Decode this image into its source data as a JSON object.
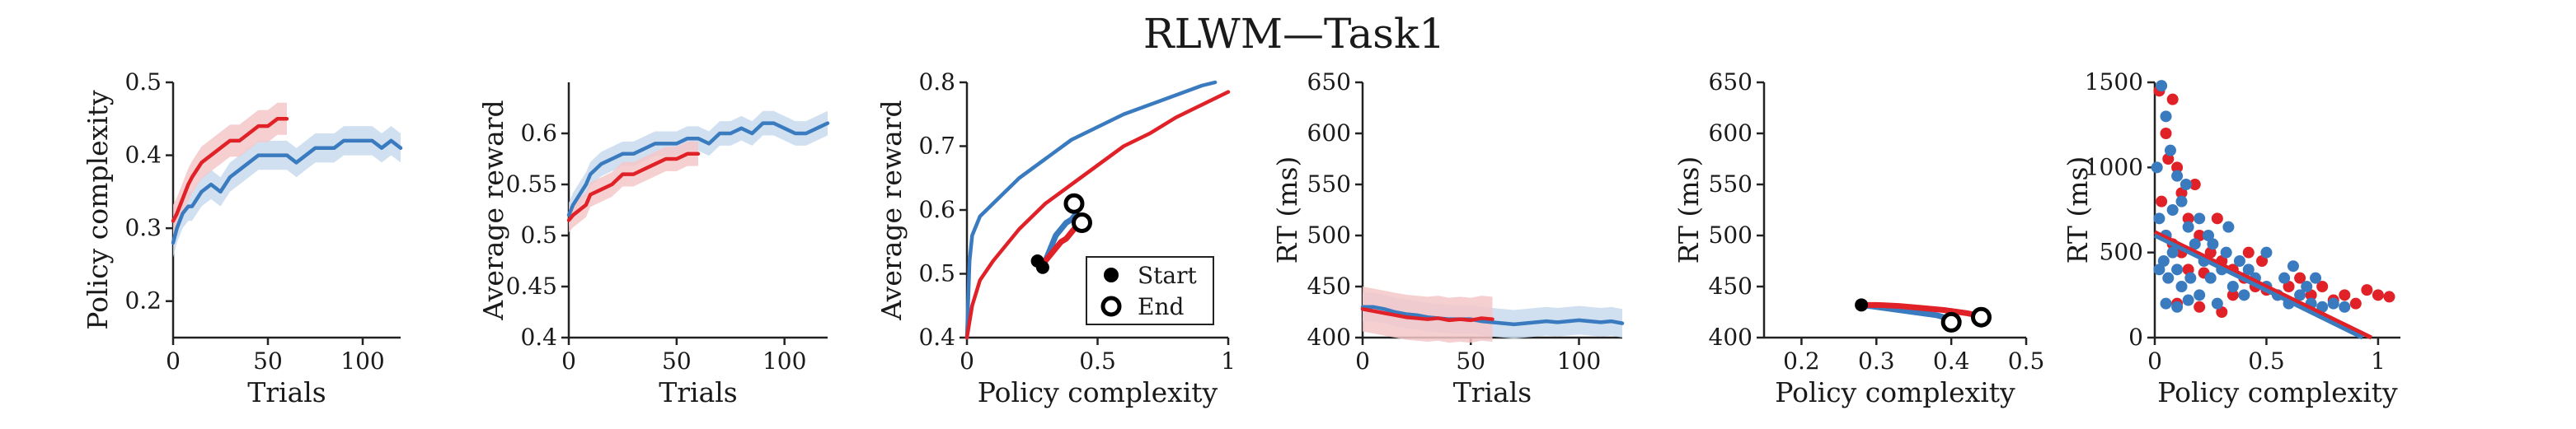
{
  "title": "RLWM—Task1",
  "colors": {
    "blue": "#3a7bbf",
    "red": "#e02228",
    "blue_band": "#c9dbee",
    "red_band": "#f5c7c9"
  },
  "chart_data": [
    {
      "type": "line",
      "xlabel": "Trials",
      "ylabel": "Policy complexity",
      "xlim": [
        0,
        120
      ],
      "ylim": [
        0.15,
        0.5
      ],
      "xticks": [
        0,
        50,
        100
      ],
      "yticks": [
        0.2,
        0.3,
        0.4,
        0.5
      ],
      "series": [
        {
          "color": "blue",
          "band": 0.02,
          "x": [
            0,
            2,
            5,
            8,
            10,
            15,
            20,
            25,
            30,
            35,
            40,
            45,
            50,
            55,
            60,
            65,
            70,
            75,
            80,
            85,
            90,
            95,
            100,
            105,
            110,
            115,
            120
          ],
          "y": [
            0.28,
            0.3,
            0.32,
            0.33,
            0.33,
            0.35,
            0.36,
            0.35,
            0.37,
            0.38,
            0.39,
            0.4,
            0.4,
            0.4,
            0.4,
            0.39,
            0.4,
            0.41,
            0.41,
            0.41,
            0.42,
            0.42,
            0.42,
            0.42,
            0.41,
            0.42,
            0.41
          ]
        },
        {
          "color": "red",
          "band": 0.022,
          "x": [
            0,
            2,
            5,
            8,
            10,
            15,
            20,
            25,
            30,
            35,
            40,
            45,
            50,
            55,
            60
          ],
          "y": [
            0.31,
            0.32,
            0.34,
            0.36,
            0.37,
            0.39,
            0.4,
            0.41,
            0.42,
            0.42,
            0.43,
            0.44,
            0.44,
            0.45,
            0.45
          ]
        }
      ]
    },
    {
      "type": "line",
      "xlabel": "Trials",
      "ylabel": "Average reward",
      "xlim": [
        0,
        120
      ],
      "ylim": [
        0.4,
        0.65
      ],
      "xticks": [
        0,
        50,
        100
      ],
      "yticks": [
        0.4,
        0.45,
        0.5,
        0.55,
        0.6
      ],
      "series": [
        {
          "color": "blue",
          "band": 0.012,
          "x": [
            0,
            2,
            5,
            8,
            10,
            15,
            20,
            25,
            30,
            35,
            40,
            45,
            50,
            55,
            60,
            65,
            70,
            75,
            80,
            85,
            90,
            95,
            100,
            105,
            110,
            115,
            120
          ],
          "y": [
            0.52,
            0.53,
            0.54,
            0.55,
            0.56,
            0.57,
            0.575,
            0.58,
            0.58,
            0.585,
            0.59,
            0.59,
            0.59,
            0.595,
            0.595,
            0.59,
            0.6,
            0.6,
            0.605,
            0.6,
            0.61,
            0.61,
            0.605,
            0.6,
            0.6,
            0.605,
            0.61
          ]
        },
        {
          "color": "red",
          "band": 0.012,
          "x": [
            0,
            2,
            5,
            8,
            10,
            15,
            20,
            25,
            30,
            35,
            40,
            45,
            50,
            55,
            60
          ],
          "y": [
            0.515,
            0.52,
            0.525,
            0.53,
            0.54,
            0.545,
            0.55,
            0.56,
            0.56,
            0.565,
            0.57,
            0.575,
            0.575,
            0.58,
            0.58
          ]
        }
      ]
    },
    {
      "type": "line",
      "xlabel": "Policy complexity",
      "ylabel": "Average reward",
      "xlim": [
        0,
        1.0
      ],
      "ylim": [
        0.4,
        0.8
      ],
      "xticks": [
        0,
        0.5,
        1
      ],
      "yticks": [
        0.4,
        0.5,
        0.6,
        0.7,
        0.8
      ],
      "series": [
        {
          "color": "blue",
          "x": [
            0,
            0.01,
            0.02,
            0.05,
            0.1,
            0.2,
            0.3,
            0.4,
            0.5,
            0.6,
            0.7,
            0.8,
            0.9,
            0.95
          ],
          "y": [
            0.4,
            0.52,
            0.56,
            0.59,
            0.61,
            0.65,
            0.68,
            0.71,
            0.73,
            0.75,
            0.765,
            0.78,
            0.795,
            0.8
          ]
        },
        {
          "color": "red",
          "x": [
            0,
            0.02,
            0.05,
            0.1,
            0.2,
            0.3,
            0.4,
            0.5,
            0.6,
            0.7,
            0.8,
            0.9,
            1.0
          ],
          "y": [
            0.4,
            0.45,
            0.49,
            0.52,
            0.57,
            0.61,
            0.64,
            0.67,
            0.7,
            0.72,
            0.745,
            0.765,
            0.785
          ]
        },
        {
          "color": "blue",
          "width": 7,
          "x": [
            0.3,
            0.32,
            0.34,
            0.36,
            0.38,
            0.4,
            0.42
          ],
          "y": [
            0.52,
            0.54,
            0.56,
            0.57,
            0.58,
            0.585,
            0.595
          ]
        },
        {
          "color": "red",
          "width": 7,
          "x": [
            0.3,
            0.32,
            0.34,
            0.36,
            0.38,
            0.4,
            0.43
          ],
          "y": [
            0.52,
            0.53,
            0.54,
            0.55,
            0.555,
            0.565,
            0.58
          ]
        }
      ],
      "markers": [
        {
          "kind": "start",
          "x": 0.27,
          "y": 0.52
        },
        {
          "kind": "start",
          "x": 0.29,
          "y": 0.51
        },
        {
          "kind": "end",
          "x": 0.41,
          "y": 0.61
        },
        {
          "kind": "end",
          "x": 0.44,
          "y": 0.58
        }
      ],
      "legend": {
        "position": "bottom-right",
        "entries": [
          {
            "kind": "start",
            "label": "Start"
          },
          {
            "kind": "end",
            "label": "End"
          }
        ]
      }
    },
    {
      "type": "line",
      "xlabel": "Trials",
      "ylabel": "RT (ms)",
      "xlim": [
        0,
        120
      ],
      "ylim": [
        400,
        650
      ],
      "xticks": [
        0,
        50,
        100
      ],
      "yticks": [
        400,
        450,
        500,
        550,
        600,
        650
      ],
      "series": [
        {
          "color": "blue",
          "band": 14,
          "x": [
            0,
            5,
            10,
            15,
            20,
            25,
            30,
            35,
            40,
            45,
            50,
            55,
            60,
            65,
            70,
            75,
            80,
            85,
            90,
            95,
            100,
            105,
            110,
            115,
            120
          ],
          "y": [
            430,
            430,
            428,
            425,
            423,
            422,
            420,
            419,
            418,
            418,
            418,
            416,
            415,
            414,
            413,
            414,
            415,
            416,
            415,
            416,
            417,
            416,
            415,
            416,
            414
          ]
        },
        {
          "color": "red",
          "band": 22,
          "x": [
            0,
            5,
            10,
            15,
            20,
            25,
            30,
            35,
            40,
            45,
            50,
            55,
            60
          ],
          "y": [
            428,
            426,
            424,
            422,
            420,
            419,
            418,
            419,
            417,
            418,
            417,
            419,
            418
          ]
        }
      ]
    },
    {
      "type": "line",
      "xlabel": "Policy complexity",
      "ylabel": "RT (ms)",
      "xlim": [
        0.15,
        0.5
      ],
      "ylim": [
        400,
        650
      ],
      "xticks": [
        0.2,
        0.3,
        0.4,
        0.5
      ],
      "yticks": [
        400,
        450,
        500,
        550,
        600,
        650
      ],
      "series": [
        {
          "color": "blue",
          "width": 7,
          "x": [
            0.28,
            0.3,
            0.32,
            0.34,
            0.36,
            0.38,
            0.4,
            0.41
          ],
          "y": [
            432,
            430,
            428,
            426,
            424,
            422,
            418,
            416
          ]
        },
        {
          "color": "red",
          "width": 7,
          "x": [
            0.28,
            0.3,
            0.33,
            0.36,
            0.39,
            0.42,
            0.44
          ],
          "y": [
            432,
            432,
            431,
            429,
            427,
            424,
            421
          ]
        }
      ],
      "markers": [
        {
          "kind": "start",
          "x": 0.28,
          "y": 432
        },
        {
          "kind": "end",
          "x": 0.4,
          "y": 415
        },
        {
          "kind": "end",
          "x": 0.44,
          "y": 420
        }
      ]
    },
    {
      "type": "scatter",
      "xlabel": "Policy complexity",
      "ylabel": "RT (ms)",
      "xlim": [
        0,
        1.1
      ],
      "ylim": [
        0,
        1500
      ],
      "xticks": [
        0,
        0.5,
        1
      ],
      "yticks": [
        0,
        500,
        1000,
        1500
      ],
      "points": [
        {
          "c": "red",
          "x": 0.02,
          "y": 1450
        },
        {
          "c": "red",
          "x": 0.05,
          "y": 1200
        },
        {
          "c": "red",
          "x": 0.08,
          "y": 1400
        },
        {
          "c": "red",
          "x": 0.1,
          "y": 1000
        },
        {
          "c": "red",
          "x": 0.12,
          "y": 850
        },
        {
          "c": "red",
          "x": 0.15,
          "y": 700
        },
        {
          "c": "red",
          "x": 0.03,
          "y": 800
        },
        {
          "c": "red",
          "x": 0.2,
          "y": 600
        },
        {
          "c": "red",
          "x": 0.25,
          "y": 500
        },
        {
          "c": "red",
          "x": 0.3,
          "y": 450
        },
        {
          "c": "red",
          "x": 0.35,
          "y": 400
        },
        {
          "c": "red",
          "x": 0.4,
          "y": 350
        },
        {
          "c": "red",
          "x": 0.45,
          "y": 300
        },
        {
          "c": "red",
          "x": 0.5,
          "y": 280
        },
        {
          "c": "red",
          "x": 0.55,
          "y": 250
        },
        {
          "c": "red",
          "x": 0.6,
          "y": 300
        },
        {
          "c": "red",
          "x": 0.7,
          "y": 250
        },
        {
          "c": "red",
          "x": 0.8,
          "y": 220
        },
        {
          "c": "red",
          "x": 0.9,
          "y": 200
        },
        {
          "c": "red",
          "x": 0.95,
          "y": 280
        },
        {
          "c": "red",
          "x": 1.0,
          "y": 250
        },
        {
          "c": "red",
          "x": 1.05,
          "y": 240
        },
        {
          "c": "red",
          "x": 0.1,
          "y": 200
        },
        {
          "c": "red",
          "x": 0.2,
          "y": 180
        },
        {
          "c": "red",
          "x": 0.3,
          "y": 150
        },
        {
          "c": "red",
          "x": 0.15,
          "y": 400
        },
        {
          "c": "red",
          "x": 0.22,
          "y": 380
        },
        {
          "c": "red",
          "x": 0.05,
          "y": 600
        },
        {
          "c": "red",
          "x": 0.08,
          "y": 550
        },
        {
          "c": "red",
          "x": 0.12,
          "y": 500
        },
        {
          "c": "red",
          "x": 0.35,
          "y": 250
        },
        {
          "c": "red",
          "x": 0.42,
          "y": 500
        },
        {
          "c": "red",
          "x": 0.48,
          "y": 450
        },
        {
          "c": "red",
          "x": 0.28,
          "y": 700
        },
        {
          "c": "red",
          "x": 0.18,
          "y": 900
        },
        {
          "c": "red",
          "x": 0.06,
          "y": 1050
        },
        {
          "c": "red",
          "x": 0.65,
          "y": 350
        },
        {
          "c": "red",
          "x": 0.75,
          "y": 300
        },
        {
          "c": "red",
          "x": 0.85,
          "y": 250
        },
        {
          "c": "blue",
          "x": 0.01,
          "y": 1000
        },
        {
          "c": "blue",
          "x": 0.03,
          "y": 1480
        },
        {
          "c": "blue",
          "x": 0.05,
          "y": 1300
        },
        {
          "c": "blue",
          "x": 0.07,
          "y": 1100
        },
        {
          "c": "blue",
          "x": 0.1,
          "y": 950
        },
        {
          "c": "blue",
          "x": 0.12,
          "y": 800
        },
        {
          "c": "blue",
          "x": 0.15,
          "y": 650
        },
        {
          "c": "blue",
          "x": 0.02,
          "y": 700
        },
        {
          "c": "blue",
          "x": 0.05,
          "y": 600
        },
        {
          "c": "blue",
          "x": 0.08,
          "y": 500
        },
        {
          "c": "blue",
          "x": 0.1,
          "y": 400
        },
        {
          "c": "blue",
          "x": 0.18,
          "y": 550
        },
        {
          "c": "blue",
          "x": 0.22,
          "y": 450
        },
        {
          "c": "blue",
          "x": 0.25,
          "y": 350
        },
        {
          "c": "blue",
          "x": 0.3,
          "y": 400
        },
        {
          "c": "blue",
          "x": 0.35,
          "y": 300
        },
        {
          "c": "blue",
          "x": 0.4,
          "y": 250
        },
        {
          "c": "blue",
          "x": 0.45,
          "y": 350
        },
        {
          "c": "blue",
          "x": 0.5,
          "y": 300
        },
        {
          "c": "blue",
          "x": 0.55,
          "y": 250
        },
        {
          "c": "blue",
          "x": 0.6,
          "y": 200
        },
        {
          "c": "blue",
          "x": 0.65,
          "y": 250
        },
        {
          "c": "blue",
          "x": 0.7,
          "y": 200
        },
        {
          "c": "blue",
          "x": 0.75,
          "y": 180
        },
        {
          "c": "blue",
          "x": 0.8,
          "y": 200
        },
        {
          "c": "blue",
          "x": 0.85,
          "y": 180
        },
        {
          "c": "blue",
          "x": 0.05,
          "y": 200
        },
        {
          "c": "blue",
          "x": 0.1,
          "y": 180
        },
        {
          "c": "blue",
          "x": 0.15,
          "y": 220
        },
        {
          "c": "blue",
          "x": 0.2,
          "y": 250
        },
        {
          "c": "blue",
          "x": 0.28,
          "y": 200
        },
        {
          "c": "blue",
          "x": 0.02,
          "y": 400
        },
        {
          "c": "blue",
          "x": 0.04,
          "y": 450
        },
        {
          "c": "blue",
          "x": 0.06,
          "y": 350
        },
        {
          "c": "blue",
          "x": 0.12,
          "y": 300
        },
        {
          "c": "blue",
          "x": 0.16,
          "y": 350
        },
        {
          "c": "blue",
          "x": 0.24,
          "y": 600
        },
        {
          "c": "blue",
          "x": 0.32,
          "y": 500
        },
        {
          "c": "blue",
          "x": 0.38,
          "y": 450
        },
        {
          "c": "blue",
          "x": 0.42,
          "y": 400
        },
        {
          "c": "blue",
          "x": 0.5,
          "y": 500
        },
        {
          "c": "blue",
          "x": 0.58,
          "y": 350
        },
        {
          "c": "blue",
          "x": 0.62,
          "y": 420
        },
        {
          "c": "blue",
          "x": 0.68,
          "y": 300
        },
        {
          "c": "blue",
          "x": 0.72,
          "y": 350
        },
        {
          "c": "blue",
          "x": 0.08,
          "y": 750
        },
        {
          "c": "blue",
          "x": 0.14,
          "y": 900
        },
        {
          "c": "blue",
          "x": 0.2,
          "y": 700
        },
        {
          "c": "blue",
          "x": 0.26,
          "y": 550
        },
        {
          "c": "blue",
          "x": 0.33,
          "y": 650
        }
      ],
      "fits": [
        {
          "color": "red",
          "x": [
            0,
            0.97
          ],
          "y": [
            620,
            0
          ]
        },
        {
          "color": "blue",
          "x": [
            0,
            0.93
          ],
          "y": [
            600,
            0
          ]
        }
      ]
    }
  ]
}
